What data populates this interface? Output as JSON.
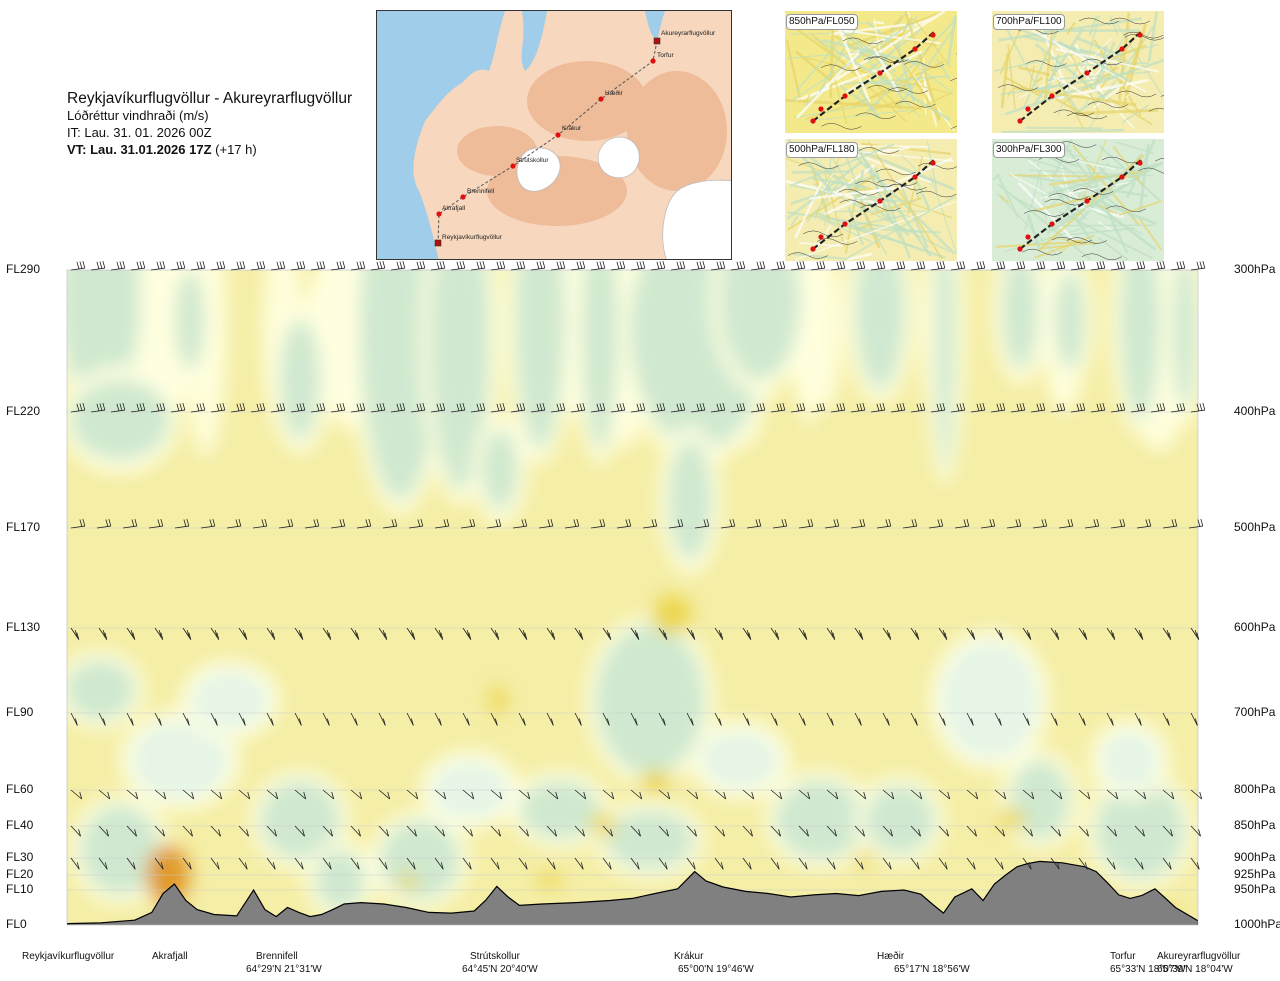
{
  "header": {
    "route_title": "Reykjavíkurflugvöllur - Akureyrarflugvöllur",
    "subtitle": "Lóðréttur vindhraði (m/s)",
    "issue_time": "IT: Lau. 31. 01. 2026 00Z",
    "valid_time_label": "VT: Lau. 31.01.2026 17Z",
    "valid_time_offset": "(+17 h)"
  },
  "map": {
    "points": [
      {
        "name": "Akureyrarflugvöllur",
        "kind": "airport"
      },
      {
        "name": "Torfur",
        "kind": "waypoint"
      },
      {
        "name": "Hæðir",
        "kind": "waypoint"
      },
      {
        "name": "Krákur",
        "kind": "waypoint"
      },
      {
        "name": "Strútskollur",
        "kind": "waypoint"
      },
      {
        "name": "Brennifell",
        "kind": "waypoint"
      },
      {
        "name": "Akrafjall",
        "kind": "waypoint"
      },
      {
        "name": "Reykjavíkurflugvöllur",
        "kind": "airport"
      }
    ],
    "colors": {
      "sea": "#9fcdea",
      "land": "#f5c7a4",
      "snow": "#ffffff",
      "route": "#555555",
      "point": "#e01010"
    }
  },
  "thumbnails": [
    {
      "label": "850hPa/FL050"
    },
    {
      "label": "700hPa/FL100"
    },
    {
      "label": "500hPa/FL180"
    },
    {
      "label": "300hPa/FL300"
    }
  ],
  "chart_data": {
    "type": "heatmap",
    "title": "Lóðréttur vindhraði (m/s)",
    "route": "Reykjavíkurflugvöllur - Akureyrarflugvöllur",
    "flight_levels": [
      "FL290",
      "FL220",
      "FL170",
      "FL130",
      "FL90",
      "FL60",
      "FL40",
      "FL30",
      "FL20",
      "FL10",
      "FL0"
    ],
    "pressure_levels": [
      "300hPa",
      "400hPa",
      "500hPa",
      "600hPa",
      "700hPa",
      "800hPa",
      "850hPa",
      "900hPa",
      "925hPa",
      "950hPa",
      "1000hPa"
    ],
    "pressure_values_hpa": [
      300,
      400,
      500,
      600,
      700,
      800,
      850,
      900,
      925,
      950,
      1000
    ],
    "ylim_hpa": [
      1000,
      300
    ],
    "x_range_km": [
      0,
      100
    ],
    "locations": [
      {
        "name": "Reykjavíkurflugvöllur",
        "coords": "",
        "x": 0
      },
      {
        "name": "Akrafjall",
        "coords": "",
        "x": 9.3
      },
      {
        "name": "Brennifell",
        "coords": "64°29'N 21°31'W",
        "x": 18.1
      },
      {
        "name": "Strútskollur",
        "coords": "64°45'N 20°40'W",
        "x": 38.3
      },
      {
        "name": "Krákur",
        "coords": "65°00'N 19°46'W",
        "x": 55.5
      },
      {
        "name": "Hæðir",
        "coords": "65°17'N 18°56'W",
        "x": 75.5
      },
      {
        "name": "Torfur",
        "coords": "65°33'N 18°07'W",
        "x": 96.2
      },
      {
        "name": "Akureyrarflugvöllur",
        "coords": "65°39'N 18°04'W",
        "x": 100
      }
    ],
    "wind_barb_levels_hpa": [
      300,
      400,
      500,
      600,
      700,
      800,
      850,
      900
    ],
    "terrain_profile": {
      "x": [
        0,
        3,
        6,
        7.5,
        8.5,
        9.5,
        10.5,
        11.5,
        13,
        15,
        16.5,
        17.5,
        18.5,
        19.5,
        20.5,
        21.5,
        22.5,
        23.5,
        24.5,
        26,
        28,
        30,
        32,
        34,
        36,
        37,
        38,
        39,
        40,
        42,
        45,
        48,
        50,
        52,
        54,
        55.5,
        56.5,
        58,
        60,
        62,
        64,
        66,
        68,
        70,
        72,
        74,
        75.5,
        76.5,
        77.5,
        78.5,
        80,
        81,
        82,
        83,
        84,
        85,
        86,
        87,
        88,
        89,
        90,
        91,
        92,
        93,
        94,
        95,
        96.2,
        97,
        98,
        100
      ],
      "hpa": [
        998,
        997,
        993,
        982,
        955,
        940,
        965,
        978,
        985,
        987,
        950,
        978,
        988,
        975,
        982,
        988,
        985,
        978,
        970,
        968,
        970,
        975,
        982,
        983,
        980,
        965,
        944,
        960,
        972,
        970,
        968,
        965,
        962,
        955,
        948,
        920,
        935,
        945,
        952,
        955,
        960,
        957,
        955,
        958,
        952,
        950,
        956,
        970,
        983,
        960,
        948,
        965,
        940,
        925,
        913,
        908,
        905,
        906,
        907,
        910,
        913,
        920,
        938,
        957,
        962,
        958,
        948,
        960,
        975,
        994
      ]
    },
    "contour_levels_ms": [
      -1.0,
      -0.5,
      -0.25,
      -0.1,
      0.1,
      0.25,
      0.5,
      1.0
    ],
    "colors": {
      "strong_down": "#e19a2a",
      "down": "#ecd64e",
      "weak_down": "#f4eeae",
      "neutral": "#ffffe0",
      "weak_up": "#e6f5e6",
      "up": "#cfe8cf",
      "strong_up": "#b0d7b6",
      "terrain": "#808080"
    }
  }
}
